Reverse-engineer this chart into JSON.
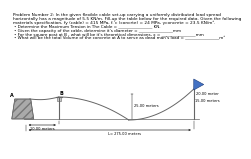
{
  "title_line1": "Problem Number 2: In the given flexible cable set-up carrying a uniformly distributed load spread",
  "title_line2": "horizontally has a magnitude of 5.5 KN/m. Fill-up the table below for the required data. Given the following",
  "title_line3": "materials specification, fy (cable) = 415 MPa, f.’c (concrte) = 24 MPa, γconcrete = 23.5 KN/m³.",
  "bullet1": "Determine the Maximum Tension in The Cable = ________________ KN.",
  "bullet2": "Given the capacity of the cable, determine it’s diameter = ________________mm",
  "bullet3": "For the square post at B , what will be it’s theoretical dimensions, x = ________________mm",
  "bullet4": "What will be the total Volume of the concrete at A to serve as dead man’s load = ________________m³",
  "label_10m": "10.00 meters",
  "label_25m": "25.00 meters",
  "label_15m": "15.00 meters",
  "label_20m": "20.00 meter",
  "label_L": "L= 275.00 meters",
  "label_A": "A",
  "label_B": "B",
  "bg_color": "#ffffff",
  "text_color": "#000000",
  "cable_color": "#666666",
  "support_color": "#666666",
  "block_facecolor": "#aaaaaa",
  "block_edgecolor": "#444444",
  "tri_color": "#4472C4",
  "tri_edge": "#1a3a7a"
}
